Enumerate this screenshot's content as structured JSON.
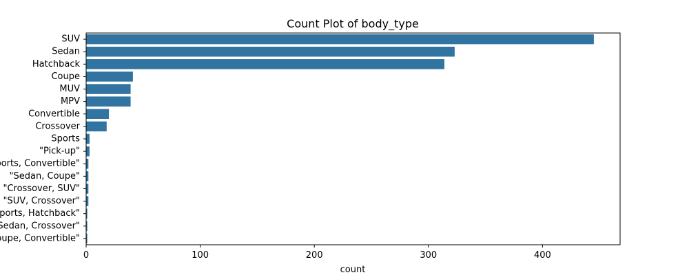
{
  "chart_data": {
    "type": "bar",
    "orientation": "horizontal",
    "title": "Count Plot of body_type",
    "xlabel": "count",
    "ylabel": "",
    "xlim": [
      0,
      468
    ],
    "x_ticks": [
      0,
      100,
      200,
      300,
      400
    ],
    "grid": false,
    "bar_color": "#3274a1",
    "categories": [
      "SUV",
      "Sedan",
      "Hatchback",
      "Coupe",
      "MUV",
      "MPV",
      "Convertible",
      "Crossover",
      "Sports",
      "\"Pick-up\"",
      "\"Sports, Convertible\"",
      "\"Sedan, Coupe\"",
      "\"Crossover, SUV\"",
      "\"SUV, Crossover\"",
      "\"Sports, Hatchback\"",
      "\"Sedan, Crossover\"",
      "\"Coupe, Convertible\""
    ],
    "values": [
      445,
      323,
      314,
      41,
      39,
      39,
      20,
      18,
      3,
      3,
      2,
      2,
      2,
      2,
      1,
      1,
      1
    ]
  }
}
